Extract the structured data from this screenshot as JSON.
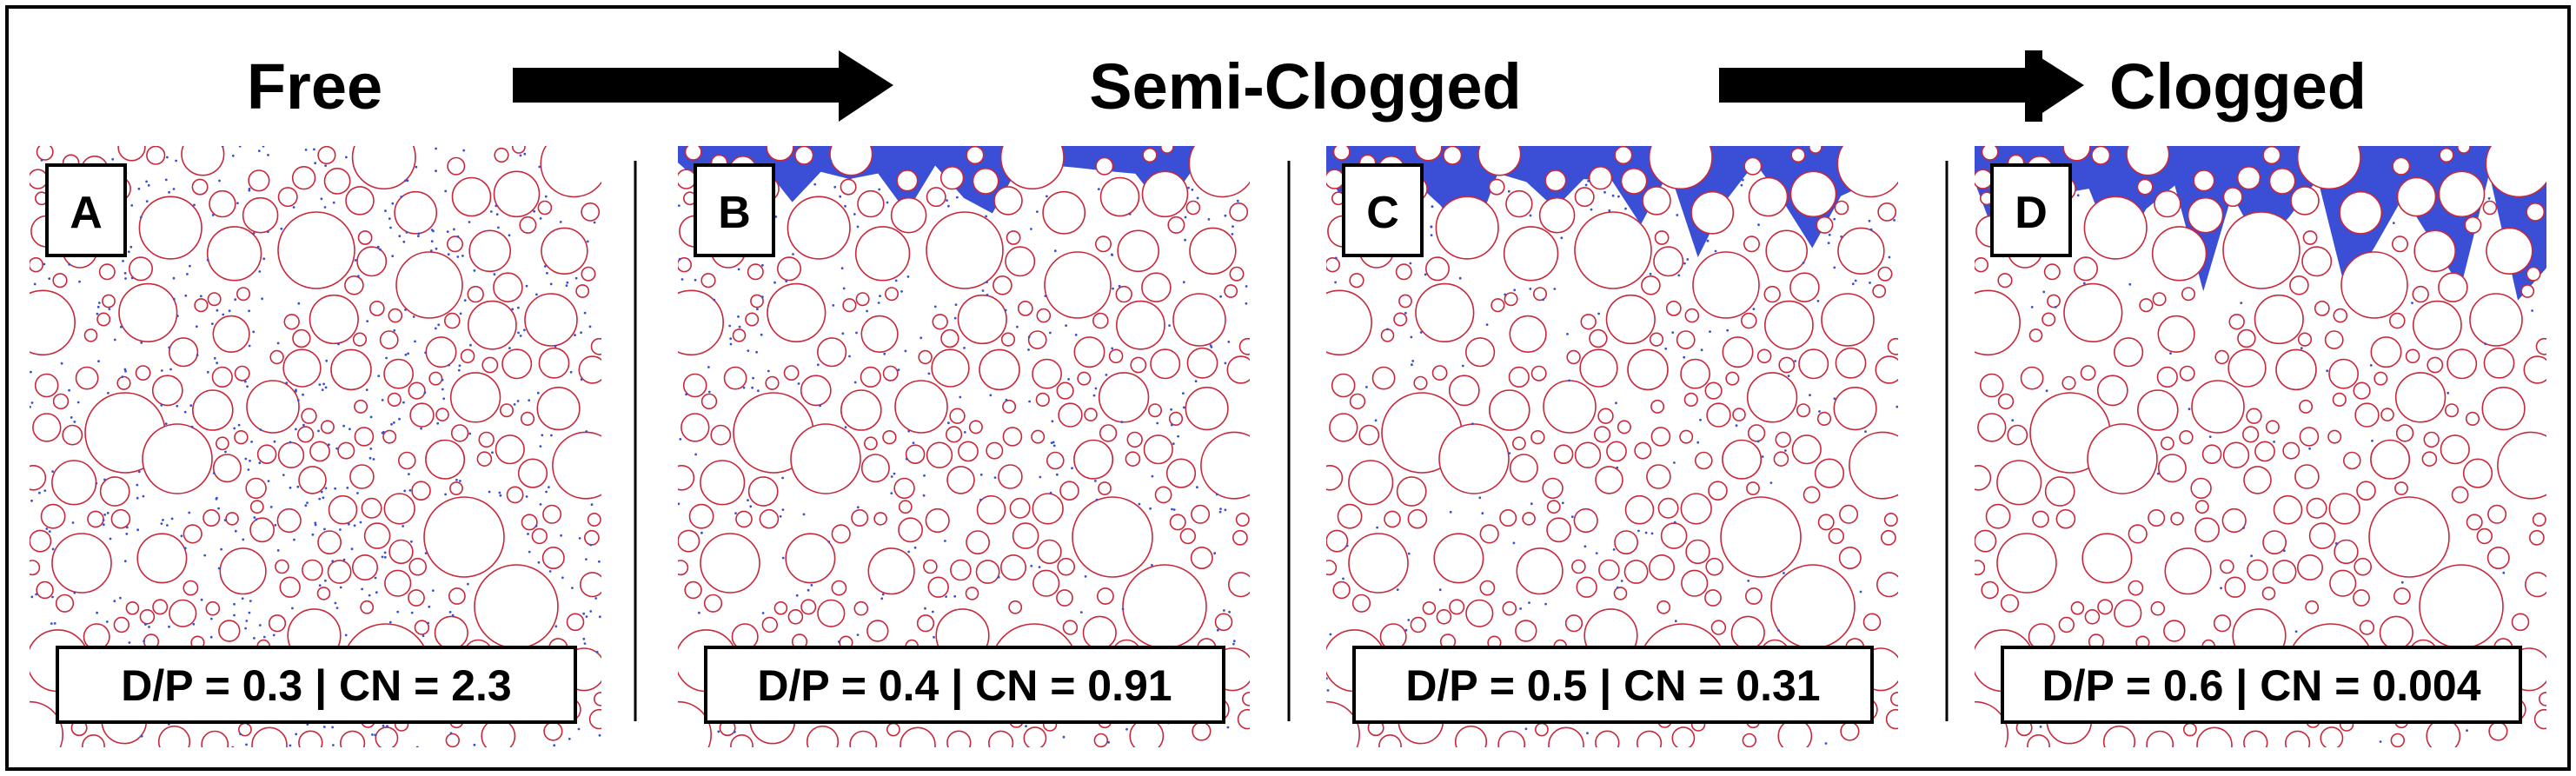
{
  "stages": [
    {
      "label": "Free"
    },
    {
      "label": "Semi-Clogged"
    },
    {
      "label": "Clogged"
    }
  ],
  "panels": [
    {
      "letter": "A",
      "caption": "D/P = 0.3 | CN = 2.3",
      "clog_level": 0.0
    },
    {
      "letter": "B",
      "caption": "D/P = 0.4 | CN = 0.91",
      "clog_level": 0.33
    },
    {
      "letter": "C",
      "caption": "D/P = 0.5 | CN = 0.31",
      "clog_level": 0.66
    },
    {
      "letter": "D",
      "caption": "D/P = 0.6 | CN = 0.004",
      "clog_level": 1.0
    }
  ],
  "colors": {
    "grain_outline": "#c8283c",
    "fine_particles": "#3a4fd6",
    "arrow": "#000000",
    "frame": "#000000"
  }
}
